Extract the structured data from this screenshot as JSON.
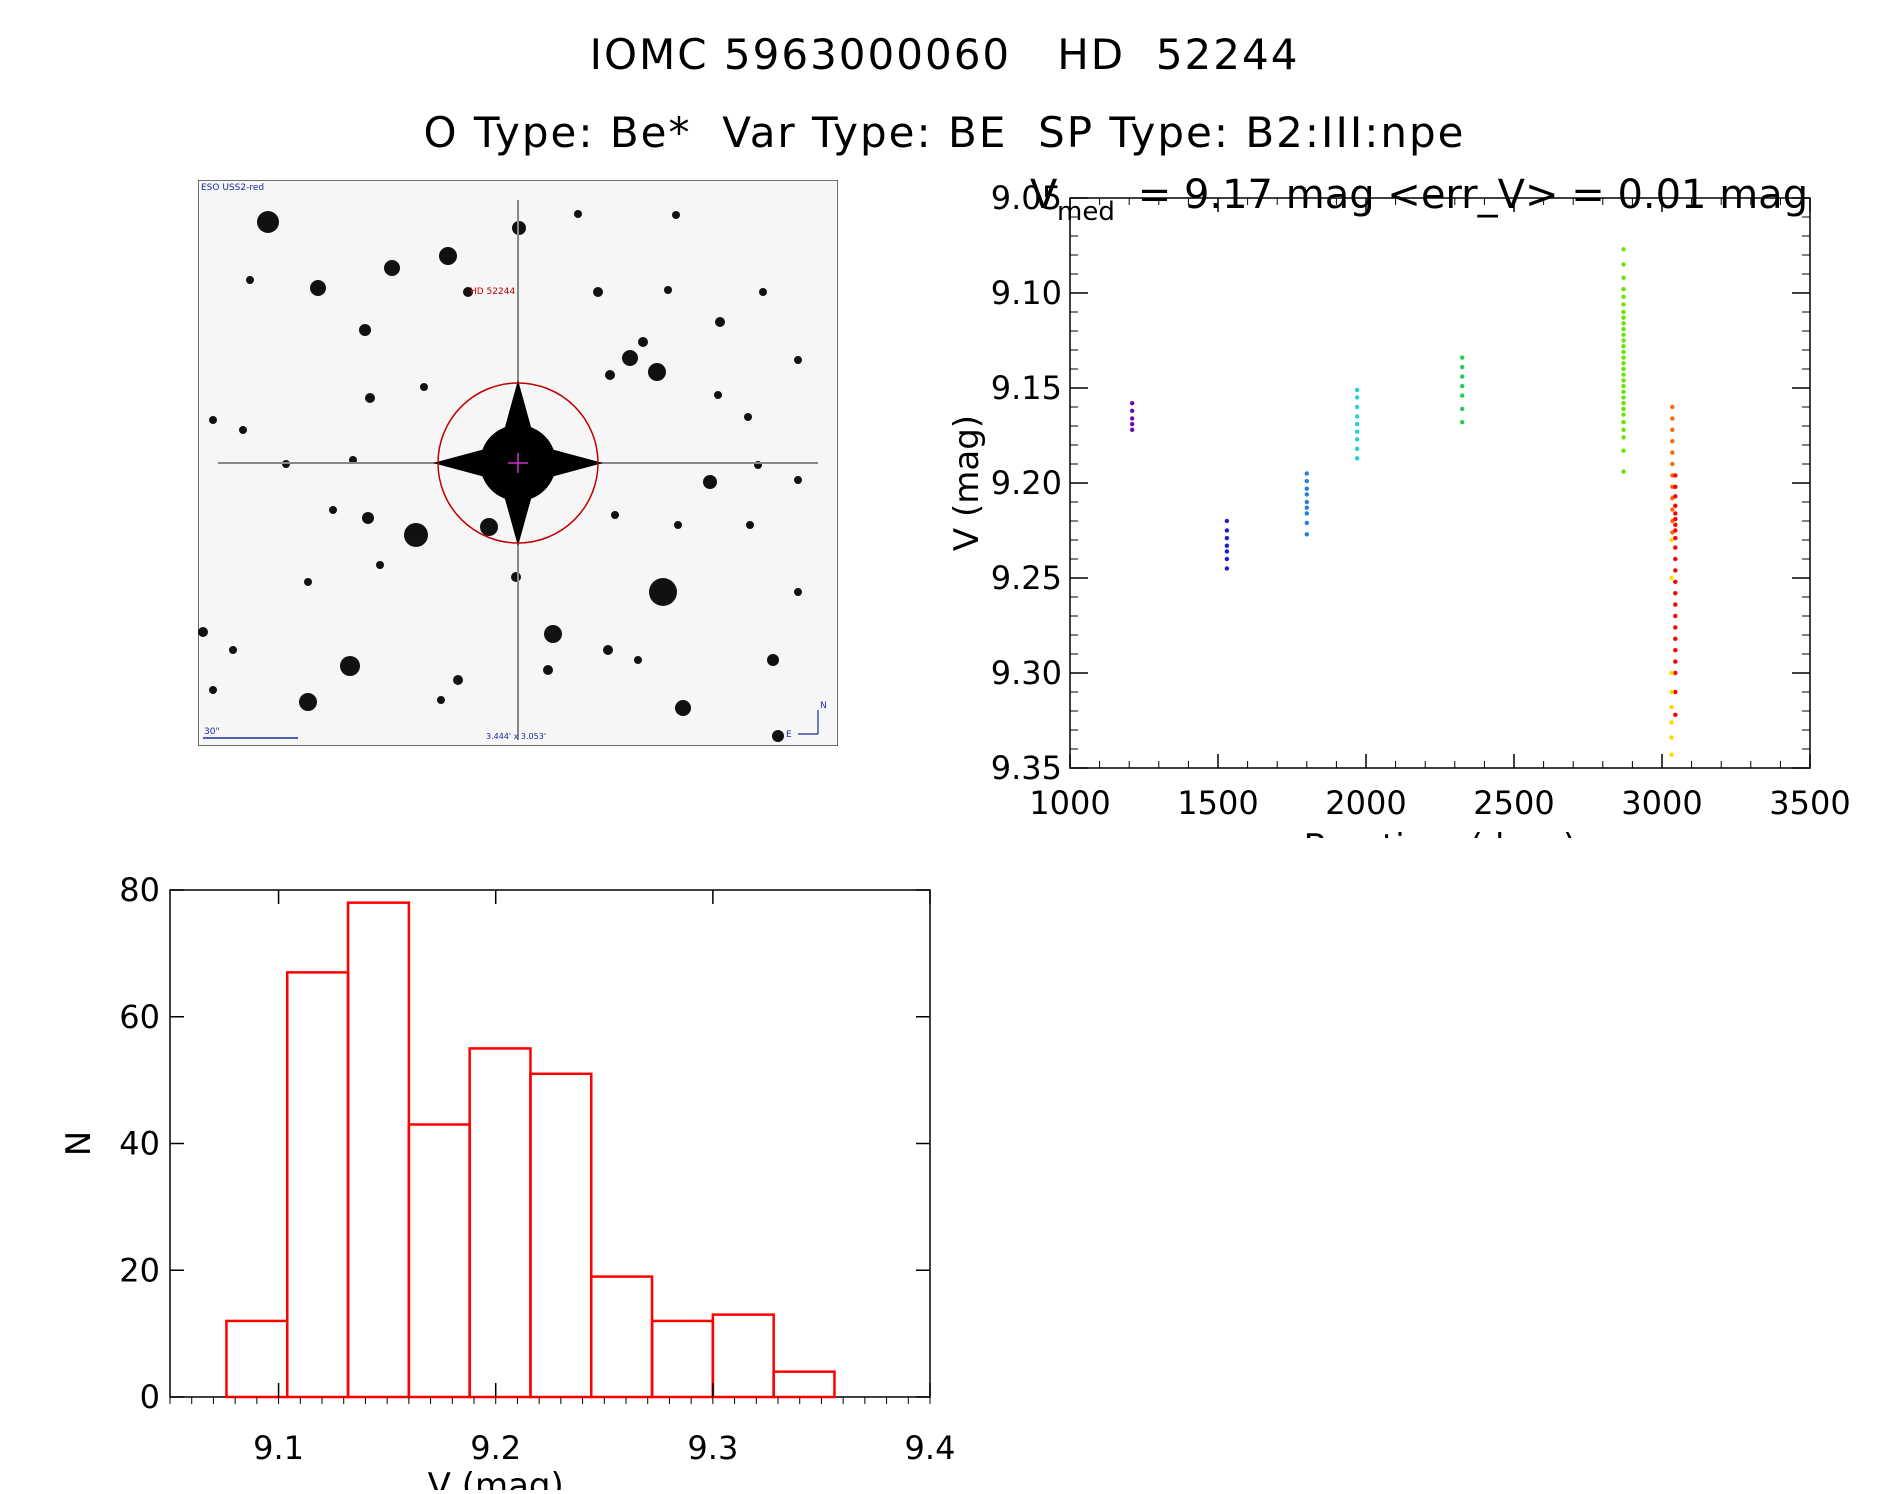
{
  "title": {
    "line1": "IOMC 5963000060   HD  52244",
    "line2": "O Type: Be*  Var Type: BE  SP Type: B2:III:npe"
  },
  "finder_chart": {
    "survey_label": "ESO USS2-red",
    "target_label": "HD 52244",
    "scale_label": "30\"",
    "field_label": "3.444' x 3.053'",
    "compass_n": "N",
    "compass_e": "E"
  },
  "colors": {
    "hist": "#ff0000",
    "axis": "#000000"
  },
  "chart_data": [
    {
      "type": "scatter",
      "title_main": "V",
      "title_sub": "med",
      "title_rest": " = 9.17 mag <err_V> = 0.01 mag",
      "xlabel": "Barytime (days)",
      "ylabel": "V (mag)",
      "xlim": [
        1000,
        3500
      ],
      "ylim": [
        9.35,
        9.05
      ],
      "y_inverted": true,
      "xticks": [
        1000,
        1500,
        2000,
        2500,
        3000,
        3500
      ],
      "xtick_labels": [
        "1000",
        "1500",
        "2000",
        "2500",
        "3000",
        "3500"
      ],
      "yticks": [
        9.05,
        9.1,
        9.15,
        9.2,
        9.25,
        9.3,
        9.35
      ],
      "ytick_labels": [
        "9.05",
        "9.10",
        "9.15",
        "9.20",
        "9.25",
        "9.30",
        "9.35"
      ],
      "series": [
        {
          "name": "epoch-1",
          "color": "#6a0dad",
          "x": [
            1210,
            1210,
            1210,
            1210,
            1210
          ],
          "y": [
            9.158,
            9.162,
            9.166,
            9.169,
            9.172
          ]
        },
        {
          "name": "epoch-2",
          "color": "#1a1adb",
          "x": [
            1530,
            1530,
            1530,
            1530,
            1530,
            1530,
            1530
          ],
          "y": [
            9.22,
            9.225,
            9.229,
            9.233,
            9.236,
            9.24,
            9.245
          ]
        },
        {
          "name": "epoch-3",
          "color": "#1e7fe6",
          "x": [
            1800,
            1800,
            1800,
            1800,
            1800,
            1800,
            1800,
            1800,
            1800
          ],
          "y": [
            9.195,
            9.199,
            9.203,
            9.206,
            9.21,
            9.213,
            9.216,
            9.221,
            9.227
          ]
        },
        {
          "name": "epoch-4",
          "color": "#19d6d6",
          "x": [
            1970,
            1970,
            1970,
            1970,
            1970,
            1970,
            1970,
            1970,
            1970
          ],
          "y": [
            9.151,
            9.155,
            9.16,
            9.165,
            9.169,
            9.173,
            9.177,
            9.182,
            9.187
          ]
        },
        {
          "name": "epoch-5",
          "color": "#22cc55",
          "x": [
            2325,
            2325,
            2325,
            2325,
            2325,
            2325,
            2325
          ],
          "y": [
            9.134,
            9.139,
            9.144,
            9.149,
            9.154,
            9.161,
            9.168
          ]
        },
        {
          "name": "epoch-6",
          "color": "#66e600",
          "x": [
            2870,
            2870,
            2870,
            2870,
            2870,
            2870,
            2870,
            2870,
            2870,
            2870,
            2870,
            2870,
            2870,
            2870,
            2870,
            2870,
            2870,
            2870,
            2870,
            2870,
            2870,
            2870,
            2870,
            2870,
            2870,
            2870,
            2870,
            2870,
            2870,
            2870
          ],
          "y": [
            9.077,
            9.085,
            9.092,
            9.098,
            9.102,
            9.106,
            9.11,
            9.113,
            9.116,
            9.119,
            9.122,
            9.125,
            9.128,
            9.131,
            9.134,
            9.137,
            9.14,
            9.143,
            9.146,
            9.149,
            9.152,
            9.155,
            9.158,
            9.161,
            9.164,
            9.168,
            9.172,
            9.176,
            9.183,
            9.194
          ]
        },
        {
          "name": "epoch-7a",
          "color": "#ff6a00",
          "x": [
            3035,
            3035,
            3035,
            3035,
            3035,
            3035,
            3035,
            3035,
            3035,
            3035,
            3035,
            3035
          ],
          "y": [
            9.16,
            9.166,
            9.172,
            9.178,
            9.184,
            9.19,
            9.196,
            9.202,
            9.208,
            9.214,
            9.22,
            9.226
          ]
        },
        {
          "name": "epoch-7b",
          "color": "#ff0000",
          "x": [
            3045,
            3045,
            3045,
            3045,
            3045,
            3045,
            3045,
            3045,
            3045,
            3045,
            3045,
            3045,
            3045,
            3045,
            3045,
            3045,
            3045,
            3045,
            3045,
            3045,
            3045,
            3045,
            3045
          ],
          "y": [
            9.196,
            9.202,
            9.207,
            9.212,
            9.216,
            9.219,
            9.222,
            9.225,
            9.229,
            9.234,
            9.24,
            9.246,
            9.252,
            9.258,
            9.264,
            9.27,
            9.276,
            9.282,
            9.288,
            9.294,
            9.3,
            9.31,
            9.322
          ]
        },
        {
          "name": "epoch-7c",
          "color": "#ffd800",
          "x": [
            3032,
            3032,
            3032,
            3032,
            3032,
            3032,
            3032,
            3032
          ],
          "y": [
            9.23,
            9.25,
            9.3,
            9.31,
            9.318,
            9.326,
            9.334,
            9.343
          ]
        }
      ]
    },
    {
      "type": "bar",
      "subtype": "histogram",
      "xlabel": "V (mag)",
      "ylabel": "N",
      "xlim": [
        9.05,
        9.4
      ],
      "ylim": [
        0,
        80
      ],
      "xticks": [
        9.1,
        9.2,
        9.3,
        9.4
      ],
      "xtick_labels": [
        "9.1",
        "9.2",
        "9.3",
        "9.4"
      ],
      "yticks": [
        0,
        20,
        40,
        60,
        80
      ],
      "ytick_labels": [
        "0",
        "20",
        "40",
        "60",
        "80"
      ],
      "bin_width": 0.028,
      "bins": [
        9.076,
        9.104,
        9.132,
        9.16,
        9.188,
        9.216,
        9.244,
        9.272,
        9.3,
        9.328
      ],
      "values": [
        12,
        67,
        78,
        43,
        55,
        51,
        19,
        12,
        13,
        4
      ]
    }
  ]
}
